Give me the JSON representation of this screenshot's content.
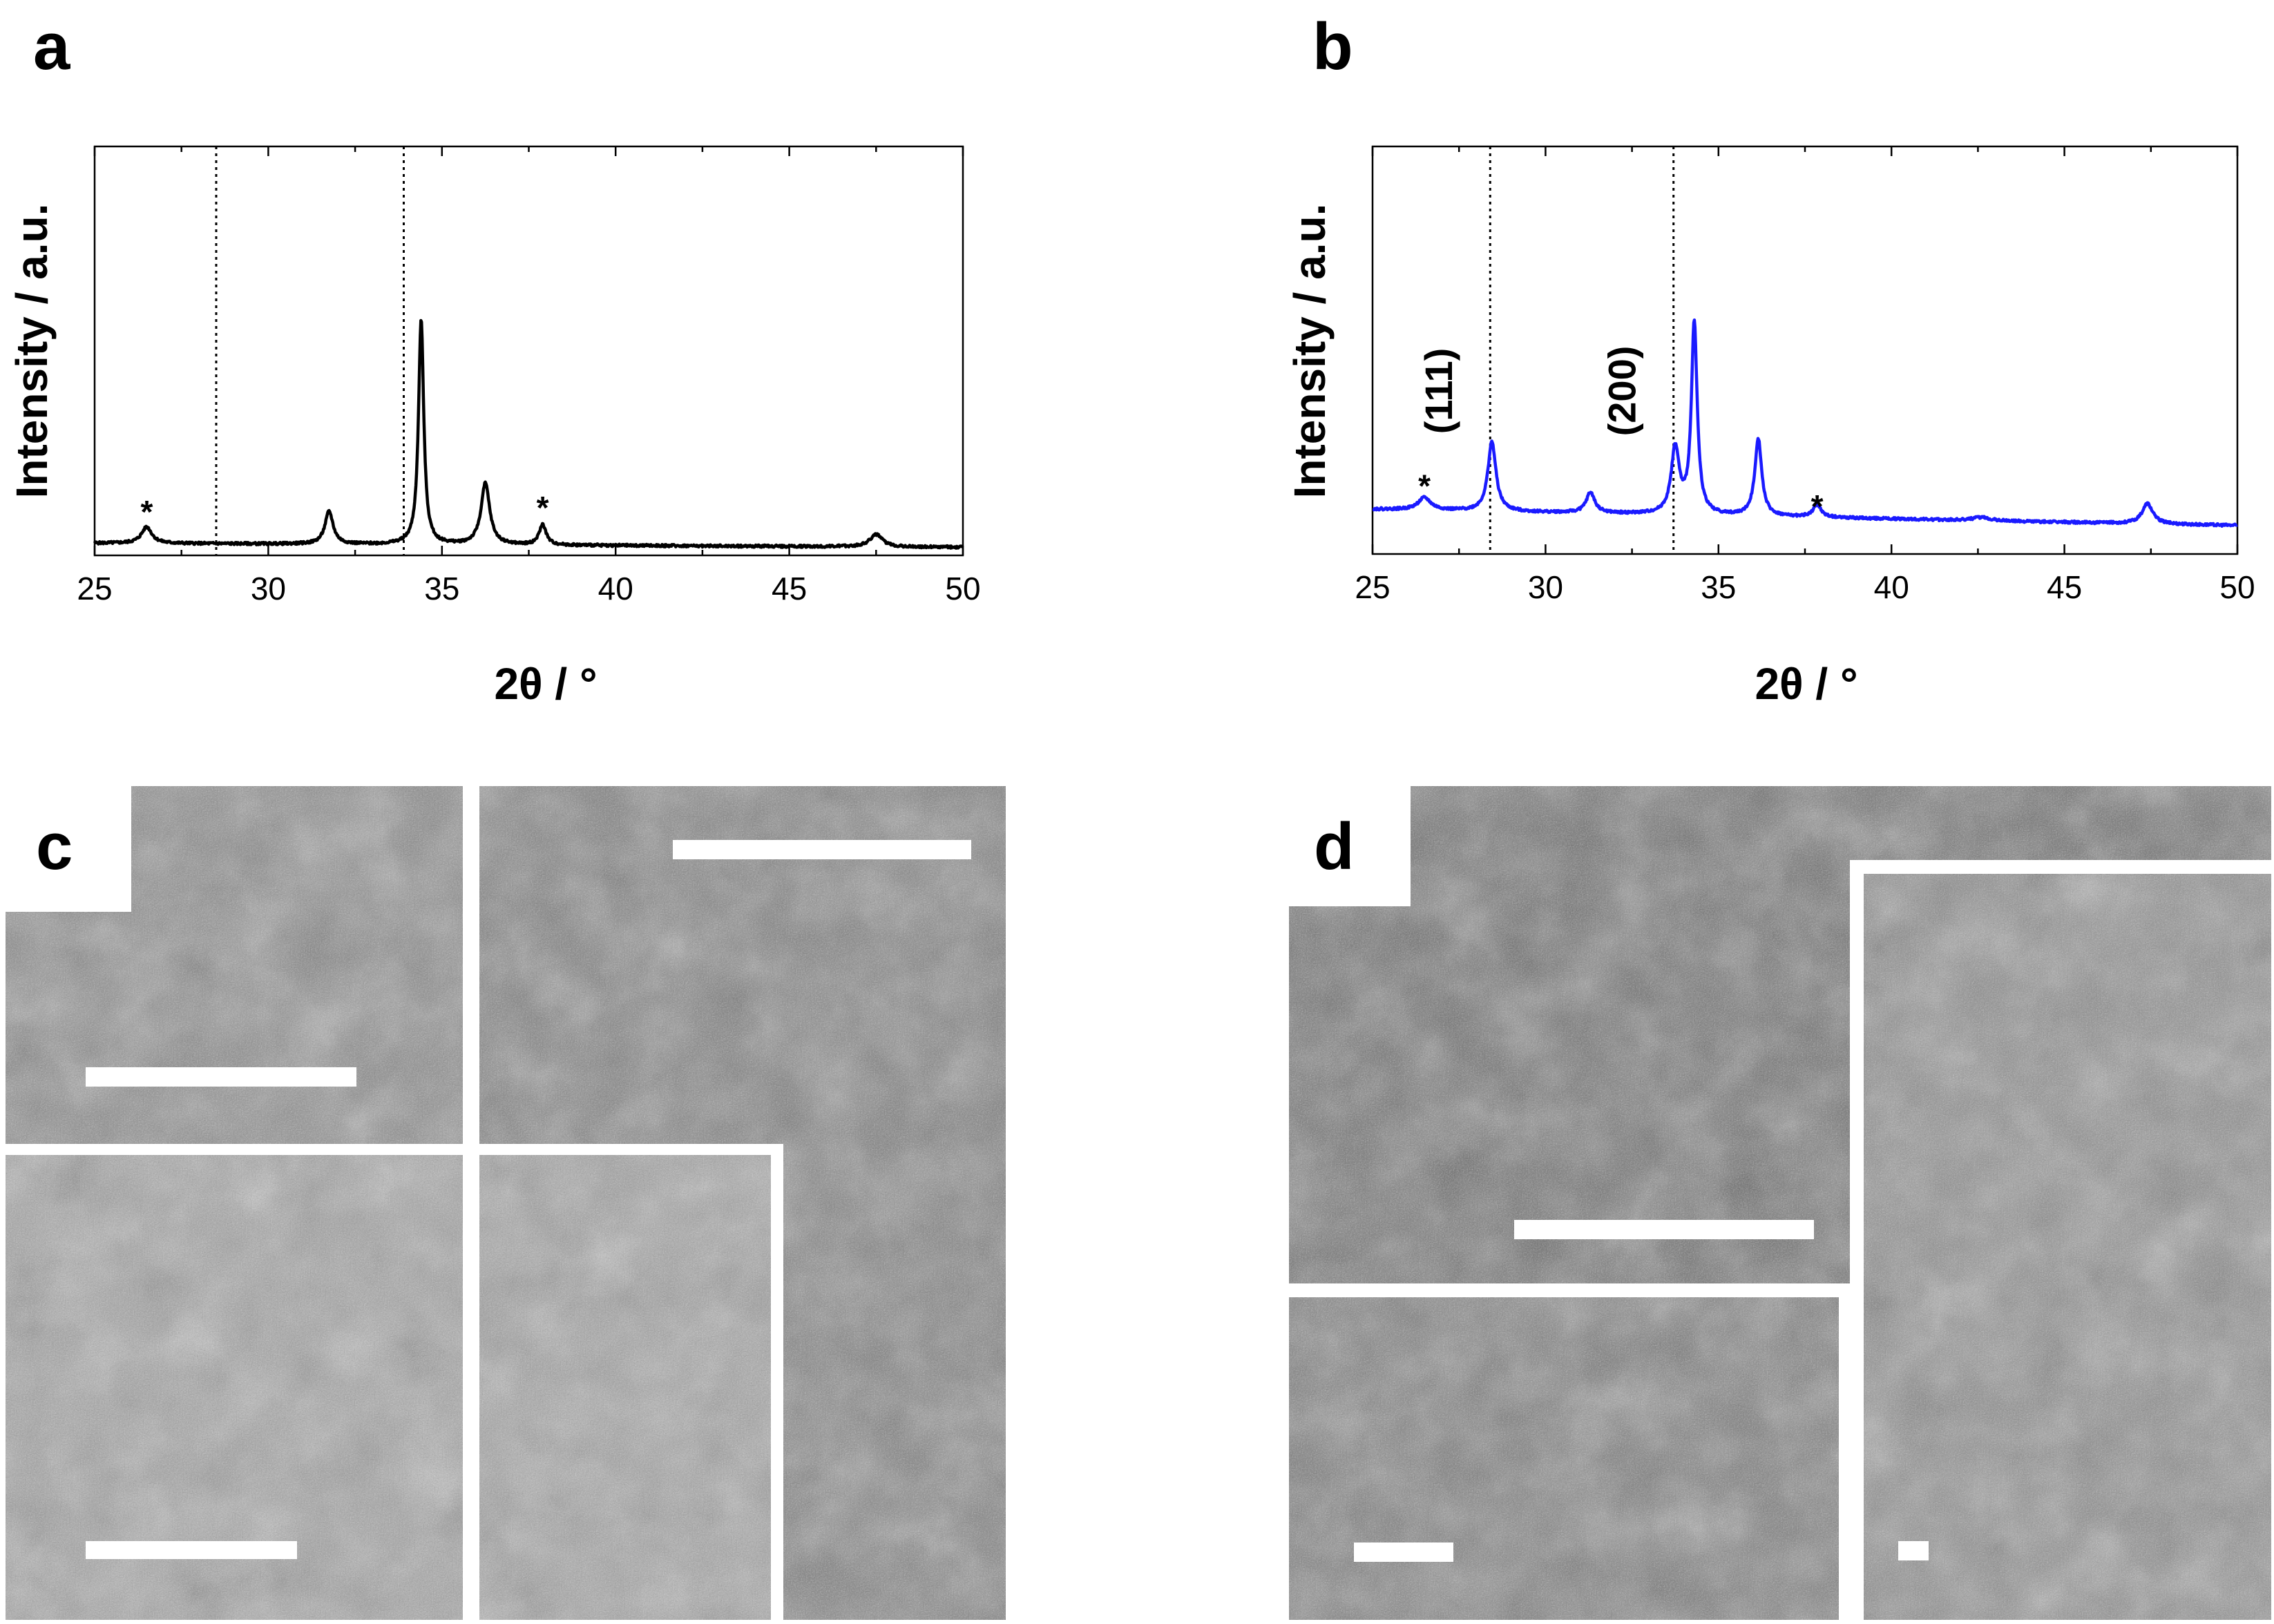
{
  "panels": {
    "a": {
      "letter": "a"
    },
    "b": {
      "letter": "b"
    },
    "c": {
      "letter": "c"
    },
    "d": {
      "letter": "d"
    }
  },
  "chart_data": [
    {
      "id": "a",
      "type": "line",
      "xlabel": "2θ  / °",
      "ylabel": "Intensity / a.u.",
      "xlim": [
        25,
        50
      ],
      "ylim": [
        0,
        1
      ],
      "xticks": [
        25,
        30,
        35,
        40,
        45,
        50
      ],
      "color": "#000000",
      "baseline": 0.03,
      "slope": -0.0004,
      "reference_lines": [
        28.5,
        33.9
      ],
      "peaks": [
        {
          "x": 26.5,
          "h": 0.04,
          "w": 0.18
        },
        {
          "x": 31.75,
          "h": 0.08,
          "w": 0.14
        },
        {
          "x": 34.4,
          "h": 0.55,
          "w": 0.09
        },
        {
          "x": 36.25,
          "h": 0.15,
          "w": 0.15
        },
        {
          "x": 37.9,
          "h": 0.05,
          "w": 0.12
        },
        {
          "x": 47.5,
          "h": 0.03,
          "w": 0.22
        }
      ],
      "annotations": [
        {
          "text": "*",
          "x": 26.5,
          "y": 0.11
        },
        {
          "text": "*",
          "x": 37.9,
          "y": 0.12
        }
      ]
    },
    {
      "id": "b",
      "type": "line",
      "xlabel": "2θ  / °",
      "ylabel": "Intensity / a.u.",
      "xlim": [
        25,
        50
      ],
      "ylim": [
        0,
        1
      ],
      "xticks": [
        25,
        30,
        35,
        40,
        45,
        50
      ],
      "color": "#1a1aff",
      "baseline": 0.11,
      "slope": -0.0016,
      "reference_lines": [
        28.4,
        33.7
      ],
      "peaks": [
        {
          "x": 26.5,
          "h": 0.03,
          "w": 0.22
        },
        {
          "x": 28.45,
          "h": 0.17,
          "w": 0.14
        },
        {
          "x": 31.3,
          "h": 0.05,
          "w": 0.15
        },
        {
          "x": 33.75,
          "h": 0.16,
          "w": 0.14
        },
        {
          "x": 34.3,
          "h": 0.47,
          "w": 0.1
        },
        {
          "x": 36.15,
          "h": 0.19,
          "w": 0.12
        },
        {
          "x": 37.85,
          "h": 0.03,
          "w": 0.14
        },
        {
          "x": 42.6,
          "h": 0.008,
          "w": 0.3
        },
        {
          "x": 47.4,
          "h": 0.05,
          "w": 0.18
        }
      ],
      "annotations": [
        {
          "text": "*",
          "x": 26.5,
          "y": 0.17
        },
        {
          "text": "*",
          "x": 37.85,
          "y": 0.12
        }
      ],
      "hkl_labels": [
        {
          "text": "(111)",
          "x": 27.3,
          "y": 0.4
        },
        {
          "text": "(200)",
          "x": 32.6,
          "y": 0.4
        }
      ]
    }
  ],
  "images": {
    "c": {
      "tiles": [
        {
          "name": "sem-c-top-left",
          "tone": "#8a8a8a"
        },
        {
          "name": "sem-c-right",
          "tone": "#7e7e7e"
        },
        {
          "name": "sem-c-bottom-left",
          "tone": "#a4a4a4"
        }
      ]
    },
    "d": {
      "tiles": [
        {
          "name": "sem-d-top",
          "tone": "#6c6c6c"
        },
        {
          "name": "sem-d-bottom-left",
          "tone": "#7a7a7a"
        },
        {
          "name": "sem-d-right",
          "tone": "#8c8c8c"
        }
      ]
    }
  }
}
